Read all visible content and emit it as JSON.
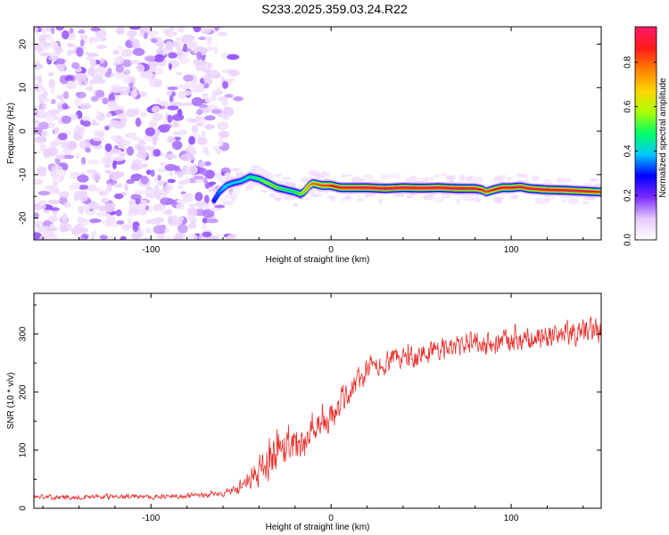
{
  "title": "S233.2025.359.03.24.R22",
  "chart_data": [
    {
      "type": "heatmap",
      "title": "S233.2025.359.03.24.R22",
      "xlabel": "Height of straight line (km)",
      "ylabel": "Frequency (Hz)",
      "xlim": [
        -165,
        150
      ],
      "ylim": [
        -25,
        24
      ],
      "xticks": [
        -100,
        0,
        100
      ],
      "yticks": [
        20,
        10,
        0,
        -10,
        -20
      ],
      "colorbar": {
        "label": "Normalized spectral amplitude",
        "range": [
          0,
          0.96
        ],
        "ticks": [
          0.0,
          0.2,
          0.4,
          0.6,
          0.8
        ],
        "colors": [
          "#ffffff",
          "#e6c8ff",
          "#7a2bff",
          "#0000ff",
          "#00c8ff",
          "#00ff66",
          "#aaff00",
          "#ffd400",
          "#ff7f00",
          "#ff1a1a",
          "#ff1a66"
        ]
      },
      "noise_region_x": [
        -165,
        -65
      ],
      "ridge": {
        "x": [
          -65,
          -62,
          -58,
          -55,
          -50,
          -45,
          -40,
          -35,
          -30,
          -25,
          -20,
          -17,
          -15,
          -12,
          -10,
          -5,
          0,
          5,
          10,
          20,
          30,
          40,
          50,
          60,
          70,
          80,
          84,
          86,
          90,
          95,
          100,
          105,
          110,
          120,
          130,
          140,
          150
        ],
        "y": [
          -16,
          -14,
          -12.5,
          -12,
          -11.5,
          -10.5,
          -11,
          -12,
          -13,
          -13.5,
          -14,
          -14.5,
          -14,
          -12.5,
          -12,
          -12.5,
          -12.5,
          -13,
          -13,
          -13,
          -13.2,
          -13,
          -13.1,
          -13,
          -13.2,
          -13.2,
          -13.5,
          -14,
          -13.5,
          -13,
          -13,
          -12.8,
          -13.2,
          -13.5,
          -13.6,
          -13.8,
          -14
        ],
        "amplitude": [
          0.3,
          0.35,
          0.4,
          0.4,
          0.4,
          0.45,
          0.5,
          0.55,
          0.55,
          0.5,
          0.5,
          0.55,
          0.6,
          0.7,
          0.75,
          0.8,
          0.85,
          0.9,
          0.92,
          0.95,
          0.95,
          0.95,
          0.95,
          0.95,
          0.95,
          0.9,
          0.85,
          0.8,
          0.85,
          0.9,
          0.9,
          0.9,
          0.9,
          0.92,
          0.92,
          0.9,
          0.85
        ]
      }
    },
    {
      "type": "line",
      "xlabel": "Height of straight line (km)",
      "ylabel": "SNR (10 * v/v)",
      "xlim": [
        -165,
        150
      ],
      "ylim": [
        0,
        370
      ],
      "xticks": [
        -100,
        0,
        100
      ],
      "yticks": [
        0,
        100,
        200,
        300
      ],
      "series": [
        {
          "name": "SNR",
          "color": "#e8302c",
          "x": [
            -165,
            -150,
            -130,
            -110,
            -90,
            -70,
            -60,
            -55,
            -50,
            -45,
            -40,
            -35,
            -30,
            -25,
            -20,
            -15,
            -10,
            -5,
            0,
            5,
            10,
            15,
            20,
            30,
            40,
            50,
            60,
            70,
            80,
            90,
            100,
            110,
            120,
            130,
            140,
            150
          ],
          "y": [
            20,
            19,
            20,
            20,
            20,
            22,
            25,
            30,
            40,
            50,
            65,
            85,
            105,
            115,
            115,
            115,
            120,
            140,
            155,
            180,
            200,
            220,
            235,
            250,
            260,
            265,
            275,
            280,
            285,
            283,
            285,
            290,
            295,
            300,
            305,
            310
          ],
          "spread": [
            6,
            6,
            6,
            6,
            6,
            7,
            8,
            12,
            18,
            25,
            40,
            55,
            55,
            55,
            50,
            45,
            45,
            40,
            40,
            35,
            30,
            30,
            28,
            28,
            30,
            30,
            28,
            28,
            28,
            30,
            30,
            30,
            30,
            30,
            30,
            32
          ]
        }
      ]
    }
  ]
}
